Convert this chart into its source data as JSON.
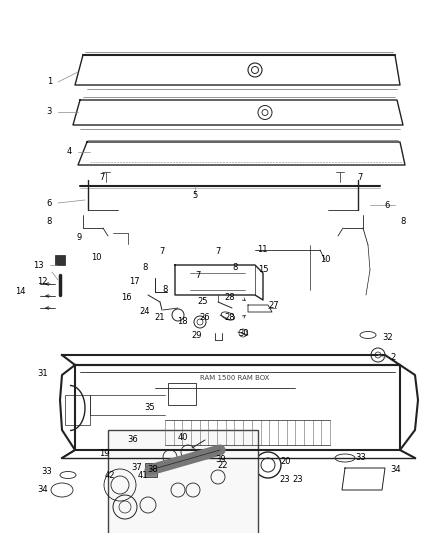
{
  "bg_color": "#ffffff",
  "line_color": "#444444",
  "dark_color": "#222222",
  "label_color": "#000000",
  "fig_w": 4.38,
  "fig_h": 5.33,
  "dpi": 100
}
